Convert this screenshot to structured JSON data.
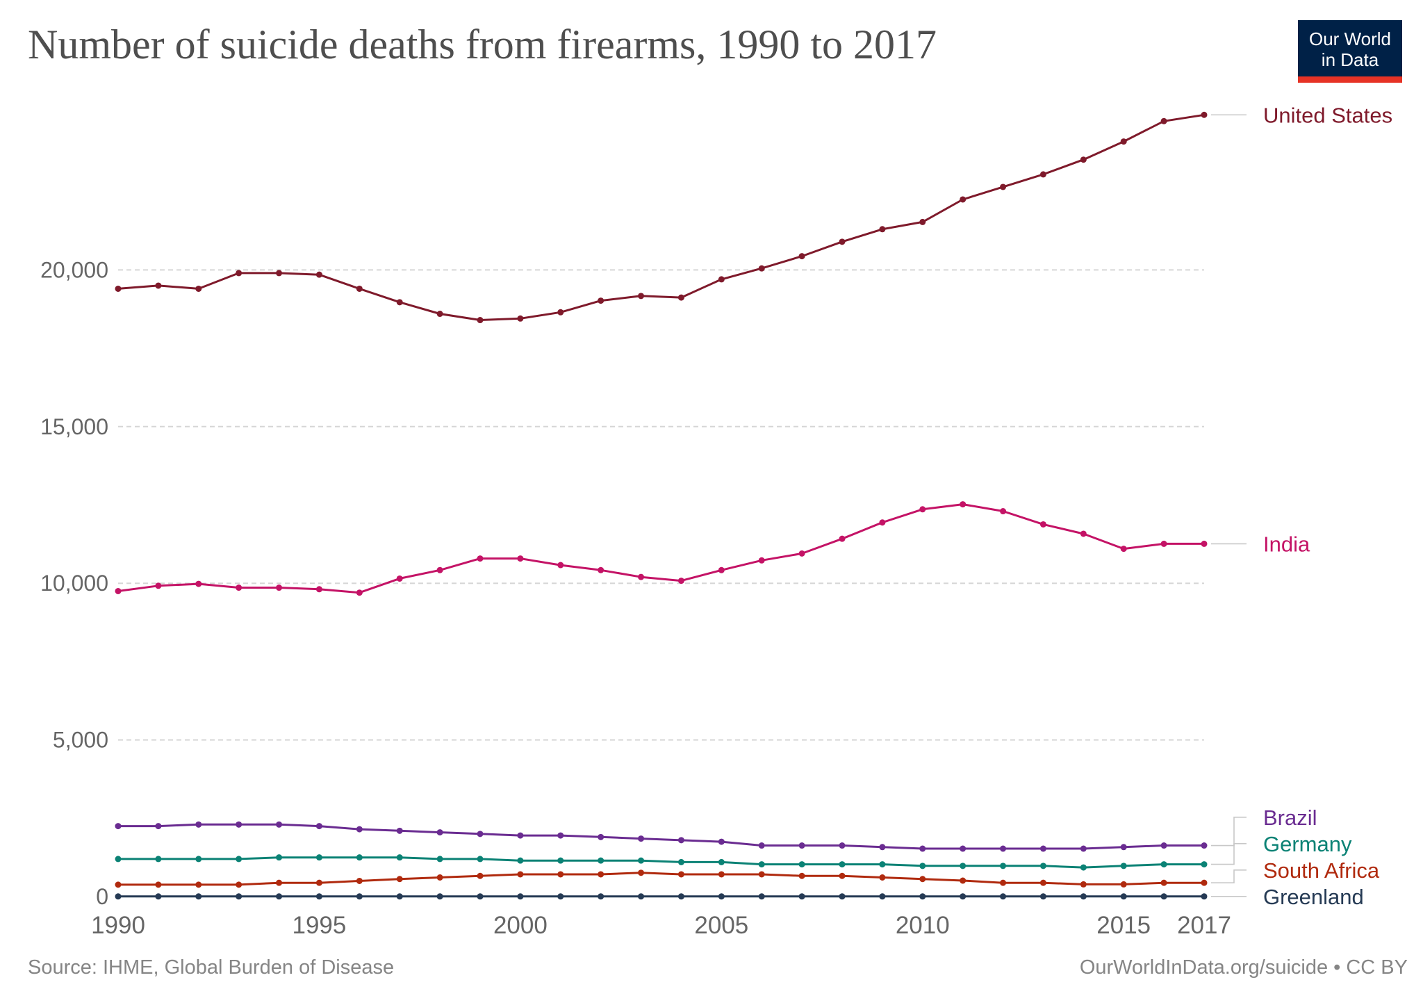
{
  "title": "Number of suicide deaths from firearms, 1990 to 2017",
  "logo": {
    "line1": "Our World",
    "line2": "in Data"
  },
  "source": "Source: IHME, Global Burden of Disease",
  "credit": "OurWorldInData.org/suicide • CC BY",
  "chart_data": {
    "type": "line",
    "title": "Number of suicide deaths from firearms, 1990 to 2017",
    "xlabel": "",
    "ylabel": "",
    "x": [
      1990,
      1991,
      1992,
      1993,
      1994,
      1995,
      1996,
      1997,
      1998,
      1999,
      2000,
      2001,
      2002,
      2003,
      2004,
      2005,
      2006,
      2007,
      2008,
      2009,
      2010,
      2011,
      2012,
      2013,
      2014,
      2015,
      2016,
      2017
    ],
    "xlim": [
      1990,
      2017
    ],
    "ylim": [
      0,
      25000
    ],
    "x_ticks": [
      "1990",
      "1995",
      "2000",
      "2005",
      "2010",
      "2015",
      "2017"
    ],
    "y_ticks": [
      "0",
      "5,000",
      "10,000",
      "15,000",
      "20,000"
    ],
    "grid": "horizontal dashed",
    "legend": "right end labels",
    "series": [
      {
        "name": "United States",
        "color": "#7f1a2b",
        "values": [
          19400,
          19500,
          19400,
          19900,
          19900,
          19850,
          19400,
          18970,
          18600,
          18400,
          18450,
          18650,
          19020,
          19170,
          19120,
          19700,
          20050,
          20440,
          20900,
          21300,
          21530,
          22250,
          22650,
          23050,
          23520,
          24100,
          24750,
          24950
        ]
      },
      {
        "name": "India",
        "color": "#c41366",
        "values": [
          9750,
          9920,
          9980,
          9860,
          9860,
          9810,
          9700,
          10150,
          10420,
          10790,
          10790,
          10580,
          10420,
          10200,
          10080,
          10420,
          10730,
          10950,
          11420,
          11940,
          12360,
          12520,
          12300,
          11880,
          11580,
          11100,
          11260,
          11260
        ]
      },
      {
        "name": "Brazil",
        "color": "#6a2c91",
        "values": [
          2250,
          2250,
          2300,
          2300,
          2300,
          2250,
          2150,
          2100,
          2050,
          2000,
          1950,
          1950,
          1900,
          1850,
          1800,
          1750,
          1630,
          1630,
          1630,
          1580,
          1530,
          1530,
          1530,
          1530,
          1530,
          1580,
          1630,
          1630
        ]
      },
      {
        "name": "Germany",
        "color": "#0b8275",
        "values": [
          1200,
          1200,
          1200,
          1200,
          1250,
          1250,
          1250,
          1250,
          1200,
          1200,
          1150,
          1150,
          1150,
          1150,
          1100,
          1100,
          1030,
          1030,
          1030,
          1030,
          980,
          980,
          980,
          980,
          930,
          980,
          1030,
          1030
        ]
      },
      {
        "name": "South Africa",
        "color": "#b02a0e",
        "values": [
          380,
          380,
          380,
          380,
          440,
          440,
          500,
          560,
          610,
          660,
          710,
          710,
          710,
          760,
          710,
          710,
          710,
          660,
          660,
          610,
          560,
          510,
          440,
          440,
          390,
          390,
          440,
          440
        ]
      },
      {
        "name": "Greenland",
        "color": "#253a54",
        "values": [
          5,
          5,
          5,
          5,
          5,
          5,
          5,
          5,
          5,
          5,
          5,
          5,
          5,
          5,
          5,
          5,
          5,
          5,
          5,
          5,
          5,
          5,
          5,
          5,
          5,
          5,
          5,
          5
        ]
      }
    ]
  }
}
